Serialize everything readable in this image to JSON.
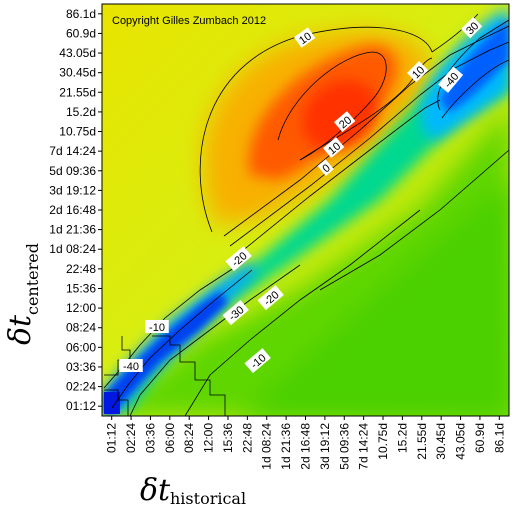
{
  "chart_data": {
    "type": "heatmap",
    "annotation": "Copyright Gilles Zumbach 2012",
    "xlabel": {
      "symbol": "δt",
      "subscript": "historical"
    },
    "ylabel": {
      "symbol": "δt",
      "subscript": "centered"
    },
    "x_ticks": [
      "01:12",
      "02:24",
      "03:36",
      "06:00",
      "08:24",
      "12:00",
      "15:36",
      "22:48",
      "1d 08:24",
      "1d 21:36",
      "2d 16:48",
      "3d 19:12",
      "5d 09:36",
      "7d 14:24",
      "10.75d",
      "15.2d",
      "21.55d",
      "30.45d",
      "43.05d",
      "60.9d",
      "86.1d"
    ],
    "y_ticks": [
      "01:12",
      "02:24",
      "03:36",
      "06:00",
      "08:24",
      "12:00",
      "15:36",
      "22:48",
      "1d 08:24",
      "1d 21:36",
      "2d 16:48",
      "3d 19:12",
      "5d 09:36",
      "7d 14:24",
      "10.75d",
      "15.2d",
      "21.55d",
      "30.45d",
      "43.05d",
      "60.9d",
      "86.1d"
    ],
    "contour_levels": [
      -40,
      -30,
      -20,
      -10,
      0,
      10,
      20,
      30
    ],
    "contour_labels": [
      {
        "text": "10",
        "x": "2d 16:48..3d 19:12",
        "y": "60.9d"
      },
      {
        "text": "20",
        "x": "5d 09:36",
        "y": "10.75d"
      },
      {
        "text": "10",
        "x": "5d 09:36",
        "y": "7d 14:24"
      },
      {
        "text": "0",
        "x": "3d 19:12",
        "y": "5d 09:36"
      },
      {
        "text": "10",
        "x": "15.2d",
        "y": "30.45d"
      },
      {
        "text": "-40",
        "x": "21.55d",
        "y": "21.55d"
      },
      {
        "text": "30",
        "x": "60.9d",
        "y": "60.9d"
      },
      {
        "text": "-20",
        "x": "15.36",
        "y": "1d 08:24"
      },
      {
        "text": "-30",
        "x": "15.36",
        "y": "06:00"
      },
      {
        "text": "-20",
        "x": "22.48",
        "y": "06:00..08:24"
      },
      {
        "text": "-10",
        "x": "03:36",
        "y": "03:36..06:00"
      },
      {
        "text": "-40",
        "x": "02:24",
        "y": "02:24"
      },
      {
        "text": "-10",
        "x": "1d 08:24",
        "y": "02:24"
      }
    ],
    "colormap": "rainbow (blue = negative, green ≈ 0, yellow/red = positive)",
    "grid": false,
    "legend": "none"
  }
}
